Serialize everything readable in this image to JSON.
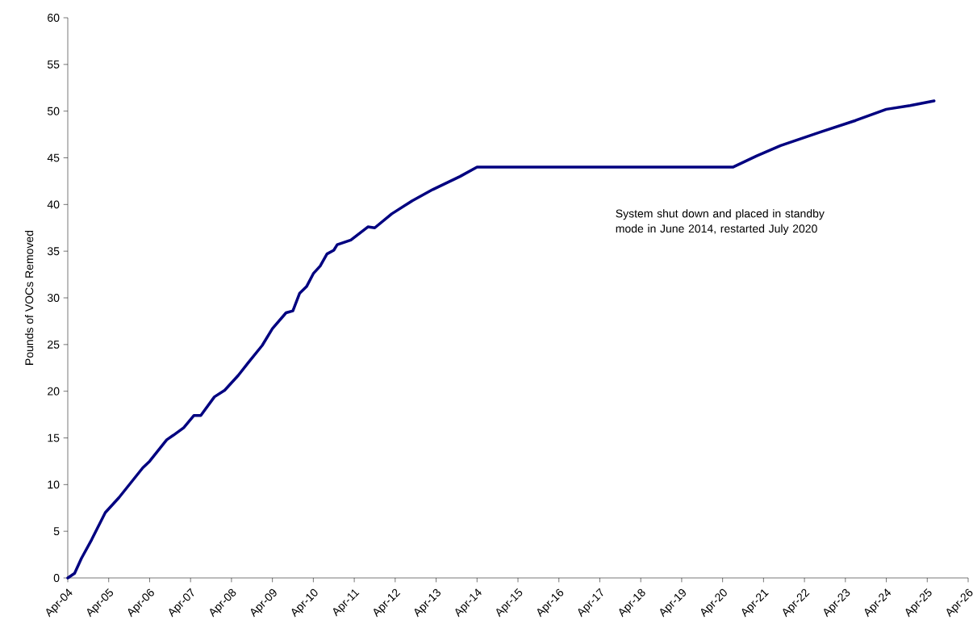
{
  "chart_data": {
    "type": "line",
    "ylabel": "Pounds of VOCs Removed",
    "x": [
      "2004-04",
      "2004-06",
      "2004-08",
      "2004-11",
      "2005-03",
      "2005-07",
      "2006-02",
      "2006-04",
      "2006-09",
      "2006-11",
      "2007-02",
      "2007-05",
      "2007-07",
      "2007-11",
      "2008-02",
      "2008-06",
      "2008-09",
      "2009-01",
      "2009-04",
      "2009-08",
      "2009-10",
      "2009-12",
      "2010-02",
      "2010-04",
      "2010-06",
      "2010-08",
      "2010-10",
      "2010-11",
      "2011-03",
      "2011-08",
      "2011-10",
      "2012-03",
      "2012-09",
      "2013-03",
      "2013-11",
      "2014-04",
      "2020-07",
      "2021-02",
      "2021-09",
      "2022-09",
      "2023-07",
      "2024-04",
      "2024-11",
      "2025-06"
    ],
    "series": [
      {
        "color": "#000080",
        "values": [
          0,
          0.5,
          2.1,
          4.1,
          7.0,
          8.6,
          11.8,
          12.5,
          14.8,
          15.3,
          16.1,
          17.4,
          17.4,
          19.4,
          20.1,
          21.7,
          23.1,
          24.9,
          26.7,
          28.4,
          28.6,
          30.5,
          31.2,
          32.6,
          33.4,
          34.7,
          35.1,
          35.7,
          36.2,
          37.6,
          37.5,
          39.0,
          40.4,
          41.6,
          43.0,
          44.0,
          44.0,
          45.2,
          46.3,
          47.8,
          49.0,
          50.2,
          50.6,
          51.1
        ]
      }
    ],
    "xlim": [
      "2004-04",
      "2026-04"
    ],
    "xticks": [
      {
        "value": "2004-04",
        "label": "Apr-04"
      },
      {
        "value": "2005-04",
        "label": "Apr-05"
      },
      {
        "value": "2006-04",
        "label": "Apr-06"
      },
      {
        "value": "2007-04",
        "label": "Apr-07"
      },
      {
        "value": "2008-04",
        "label": "Apr-08"
      },
      {
        "value": "2009-04",
        "label": "Apr-09"
      },
      {
        "value": "2010-04",
        "label": "Apr-10"
      },
      {
        "value": "2011-04",
        "label": "Apr-11"
      },
      {
        "value": "2012-04",
        "label": "Apr-12"
      },
      {
        "value": "2013-04",
        "label": "Apr-13"
      },
      {
        "value": "2014-04",
        "label": "Apr-14"
      },
      {
        "value": "2015-04",
        "label": "Apr-15"
      },
      {
        "value": "2016-04",
        "label": "Apr-16"
      },
      {
        "value": "2017-04",
        "label": "Apr-17"
      },
      {
        "value": "2018-04",
        "label": "Apr-18"
      },
      {
        "value": "2019-04",
        "label": "Apr-19"
      },
      {
        "value": "2020-04",
        "label": "Apr-20"
      },
      {
        "value": "2021-04",
        "label": "Apr-21"
      },
      {
        "value": "2022-04",
        "label": "Apr-22"
      },
      {
        "value": "2023-04",
        "label": "Apr-23"
      },
      {
        "value": "2024-04",
        "label": "Apr-24"
      },
      {
        "value": "2025-04",
        "label": "Apr-25"
      },
      {
        "value": "2026-04",
        "label": "Apr-26"
      }
    ],
    "ylim": [
      0,
      60
    ],
    "yticks": [
      0,
      5,
      10,
      15,
      20,
      25,
      30,
      35,
      40,
      45,
      50,
      55,
      60
    ],
    "annotations": [
      "System shut down and placed in standby mode in June 2014, restarted July 2020"
    ],
    "grid": false,
    "marker": "none",
    "line_style": "solid"
  }
}
